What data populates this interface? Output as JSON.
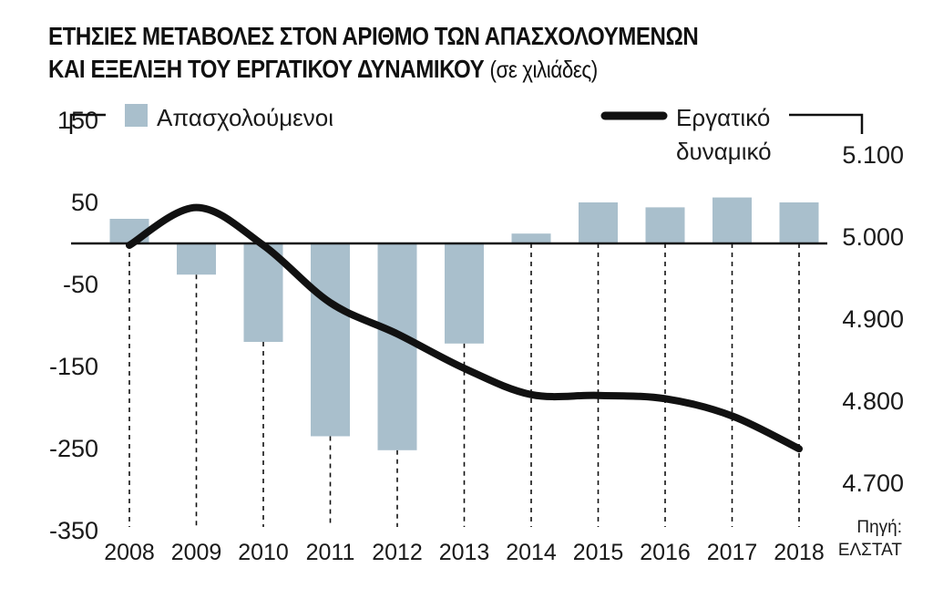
{
  "title_line1": "ΕΤΗΣΙΕΣ ΜΕΤΑΒΟΛΕΣ ΣΤΟΝ ΑΡΙΘΜΟ ΤΩΝ ΑΠΑΣΧΟΛΟΥΜΕΝΩΝ",
  "title_line2": "ΚΑΙ ΕΞΕΛΙΞΗ ΤΟΥ ΕΡΓΑΤΙΚΟΥ ΔΥΝΑΜΙΚΟΥ",
  "title_unit": "(σε χιλιάδες)",
  "source_label": "Πηγή:",
  "source_name": "ΕΛΣΤΑΤ",
  "colors": {
    "bar": "#a9bfcc",
    "line": "#111111",
    "axis": "#111111"
  },
  "chart_data": {
    "type": "bar",
    "categories": [
      "2008",
      "2009",
      "2010",
      "2011",
      "2012",
      "2013",
      "2014",
      "2015",
      "2016",
      "2017",
      "2018"
    ],
    "series": [
      {
        "name": "Απασχολούμενοι",
        "type": "bar",
        "axis": "left",
        "values": [
          30,
          -38,
          -120,
          -235,
          -252,
          -122,
          12,
          50,
          44,
          56,
          50
        ]
      },
      {
        "name_lines": [
          "Εργατικό",
          "δυναμικό"
        ],
        "type": "line",
        "axis": "right",
        "values": [
          4990,
          5036,
          4990,
          4920,
          4882,
          4840,
          4808,
          4807,
          4803,
          4782,
          4742
        ]
      }
    ],
    "left_axis": {
      "ticks": [
        150,
        50,
        -50,
        -150,
        -250,
        -350
      ],
      "labels": [
        "150",
        "50",
        "-50",
        "-150",
        "-250",
        "-350"
      ],
      "baseline": 0
    },
    "right_axis": {
      "ticks": [
        5100,
        5000,
        4900,
        4800,
        4700
      ],
      "labels": [
        "5.100",
        "5.000",
        "4.900",
        "4.800",
        "4.700"
      ]
    }
  }
}
